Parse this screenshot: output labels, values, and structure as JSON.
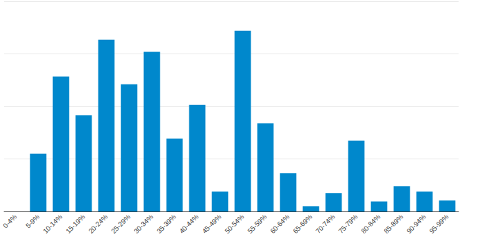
{
  "chart_data": {
    "type": "bar",
    "categories": [
      "0-4%",
      "5-9%",
      "10-14%",
      "15-19%",
      "20-24%",
      "25-29%",
      "30-34%",
      "35-39%",
      "40-44%",
      "45-49%",
      "50-54%",
      "55-59%",
      "60-64%",
      "65-69%",
      "70-74%",
      "75-79%",
      "80-84%",
      "85-89%",
      "90-94%",
      "95-99%"
    ],
    "values": [
      0,
      11.0,
      25.7,
      18.3,
      32.7,
      24.2,
      30.4,
      13.9,
      20.3,
      3.8,
      34.4,
      16.8,
      7.3,
      1.0,
      3.5,
      13.5,
      1.9,
      4.8,
      3.8,
      2.1
    ],
    "color": "#0088cc",
    "ylim": [
      0,
      40
    ],
    "yticks": [
      0,
      10,
      20,
      30,
      40
    ],
    "grid": true,
    "tick_labels": "x"
  }
}
